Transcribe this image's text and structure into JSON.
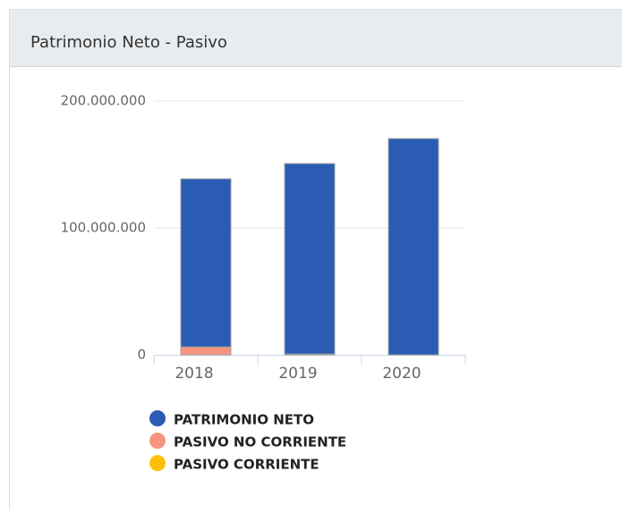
{
  "panel": {
    "title": "Patrimonio Neto - Pasivo"
  },
  "chart_data": {
    "type": "bar",
    "stacked": true,
    "categories": [
      "2018",
      "2019",
      "2020"
    ],
    "series": [
      {
        "name": "PATRIMONIO NETO",
        "color": "#2a5cb3",
        "values": [
          132400000,
          150000000,
          170400000
        ]
      },
      {
        "name": "PASIVO NO CORRIENTE",
        "color": "#f79480",
        "values": [
          6300000,
          700000,
          0
        ]
      },
      {
        "name": "PASIVO CORRIENTE",
        "color": "#ffc107",
        "values": [
          0,
          0,
          0
        ]
      }
    ],
    "ylim": [
      0,
      200000000
    ],
    "yticks": [
      0,
      {
        "value": 100000000,
        "label": "100.000.000"
      },
      {
        "value": 200000000,
        "label": "200.000.000"
      }
    ],
    "grid": true
  }
}
